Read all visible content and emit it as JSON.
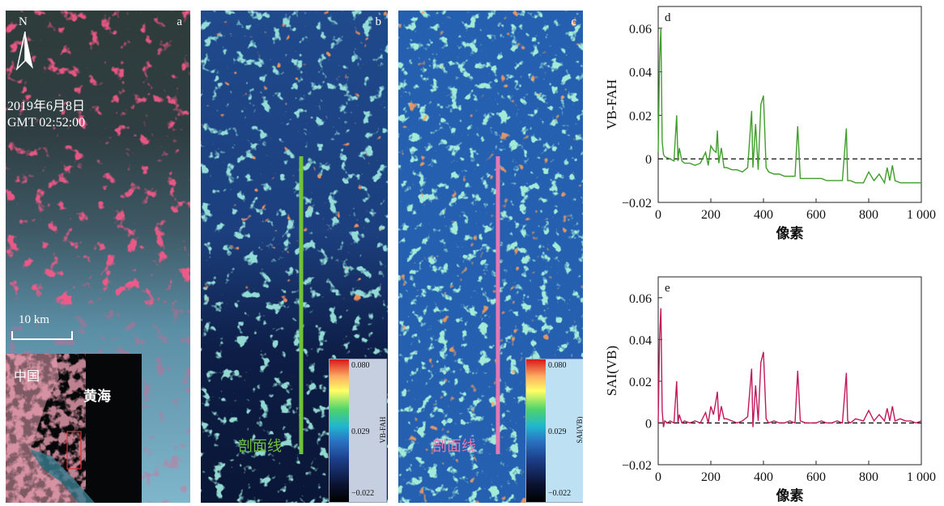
{
  "panel_a": {
    "label": "a",
    "north": "N",
    "date": "2019年6月8日",
    "time": "GMT 02:52:00",
    "scalebar": "10 km",
    "inset_china": "中国",
    "inset_sea": "黄海"
  },
  "panel_b": {
    "label": "b",
    "profile_label": "剖面线",
    "colorbar_title": "VB-FAH",
    "colorbar_max": "0.080",
    "colorbar_mid": "0.029",
    "colorbar_min": "−0.022",
    "profile_color": "#6fc23a"
  },
  "panel_c": {
    "label": "c",
    "profile_label": "剖面线",
    "colorbar_title": "SAI(VB)",
    "colorbar_max": "0.080",
    "colorbar_mid": "0.029",
    "colorbar_min": "−0.022",
    "profile_color": "#e07ab0"
  },
  "chart_data": [
    {
      "panel": "d",
      "type": "line",
      "xlabel": "像素",
      "ylabel": "VB-FAH",
      "xlim": [
        0,
        1000
      ],
      "ylim": [
        -0.02,
        0.07
      ],
      "xticks": [
        "0",
        "200",
        "400",
        "600",
        "800",
        "1 000"
      ],
      "yticks": [
        "−0.02",
        "0",
        "0.02",
        "0.04",
        "0.06"
      ],
      "color": "#3f9e2a",
      "reference_line": 0,
      "x": [
        0,
        5,
        10,
        15,
        20,
        25,
        35,
        45,
        60,
        70,
        75,
        80,
        90,
        100,
        120,
        140,
        160,
        180,
        190,
        200,
        210,
        220,
        225,
        230,
        240,
        250,
        260,
        280,
        300,
        320,
        340,
        355,
        360,
        370,
        380,
        390,
        400,
        410,
        420,
        440,
        460,
        480,
        500,
        520,
        530,
        540,
        560,
        580,
        600,
        620,
        640,
        660,
        680,
        700,
        715,
        720,
        730,
        750,
        780,
        800,
        820,
        840,
        860,
        870,
        880,
        890,
        900,
        920,
        940,
        960,
        980,
        1000
      ],
      "y": [
        0.003,
        0.045,
        0.06,
        0.008,
        0.002,
        0.001,
        0.0005,
        0.0,
        -0.001,
        0.02,
        -0.001,
        0.005,
        -0.001,
        -0.002,
        -0.002,
        -0.003,
        -0.002,
        0.003,
        -0.003,
        0.006,
        0.004,
        0.003,
        0.013,
        -0.002,
        0.005,
        -0.004,
        -0.004,
        -0.005,
        -0.005,
        -0.006,
        -0.004,
        0.022,
        -0.004,
        0.016,
        -0.005,
        0.025,
        0.029,
        -0.004,
        -0.006,
        -0.007,
        -0.007,
        -0.008,
        -0.008,
        -0.008,
        0.015,
        -0.009,
        -0.009,
        -0.009,
        -0.009,
        -0.009,
        -0.01,
        -0.01,
        -0.01,
        -0.01,
        0.014,
        -0.01,
        -0.01,
        -0.011,
        -0.011,
        -0.006,
        -0.01,
        -0.007,
        -0.011,
        -0.004,
        -0.01,
        -0.003,
        -0.01,
        -0.011,
        -0.011,
        -0.011,
        -0.011,
        -0.011
      ]
    },
    {
      "panel": "e",
      "type": "line",
      "xlabel": "像素",
      "ylabel": "SAI(VB)",
      "xlim": [
        0,
        1000
      ],
      "ylim": [
        -0.02,
        0.07
      ],
      "xticks": [
        "0",
        "200",
        "400",
        "600",
        "800",
        "1 000"
      ],
      "yticks": [
        "−0.02",
        "0",
        "0.02",
        "0.04",
        "0.06"
      ],
      "color": "#c2185b",
      "reference_line": 0,
      "x": [
        0,
        5,
        10,
        15,
        20,
        25,
        35,
        45,
        60,
        70,
        75,
        80,
        90,
        100,
        120,
        140,
        160,
        180,
        190,
        200,
        210,
        220,
        225,
        230,
        240,
        250,
        260,
        280,
        300,
        320,
        340,
        355,
        360,
        370,
        380,
        390,
        400,
        410,
        420,
        440,
        460,
        480,
        500,
        520,
        530,
        540,
        560,
        580,
        600,
        620,
        640,
        660,
        680,
        700,
        715,
        720,
        730,
        750,
        780,
        800,
        820,
        840,
        860,
        870,
        880,
        890,
        900,
        920,
        940,
        960,
        980,
        1000
      ],
      "y": [
        0.0,
        0.04,
        0.055,
        0.006,
        -0.002,
        0.001,
        0.0,
        0.001,
        0.0,
        0.02,
        0.0,
        0.004,
        0.0,
        0.001,
        0.0,
        0.001,
        0.0,
        0.005,
        0.0,
        0.008,
        0.004,
        0.011,
        0.015,
        0.001,
        0.008,
        0.002,
        0.002,
        0.001,
        0.0,
        0.001,
        0.003,
        0.026,
        -0.002,
        0.018,
        0.001,
        0.029,
        0.034,
        0.002,
        0.0,
        0.001,
        0.0,
        0.0,
        0.001,
        0.0,
        0.025,
        0.001,
        0.0,
        0.0,
        0.0,
        0.001,
        0.0,
        0.0,
        0.001,
        0.0,
        0.024,
        0.001,
        0.0,
        0.002,
        0.001,
        0.006,
        0.001,
        0.004,
        0.001,
        0.007,
        0.001,
        0.008,
        0.001,
        0.002,
        0.001,
        0.001,
        0.0,
        0.001
      ]
    }
  ]
}
